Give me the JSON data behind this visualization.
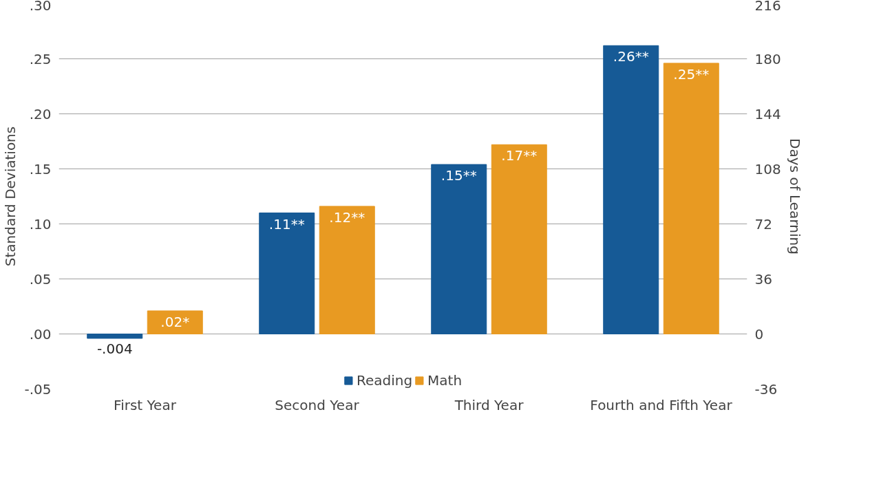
{
  "chart_data": {
    "type": "bar",
    "ylabel": "Standard Deviations",
    "y2label": "Days of Learning",
    "categories": [
      "First Year",
      "Second Year",
      "Third Year",
      "Fourth and Fifth Year"
    ],
    "series": [
      {
        "name": "Reading",
        "color": "#165a96",
        "values": [
          -0.004,
          0.11,
          0.154,
          0.262
        ],
        "value_labels": [
          "-.004",
          ".11**",
          ".15**",
          ".26**"
        ]
      },
      {
        "name": "Math",
        "color": "#e89a22",
        "values": [
          0.021,
          0.116,
          0.172,
          0.246
        ],
        "value_labels": [
          ".02*",
          ".12**",
          ".17**",
          ".25**"
        ]
      }
    ],
    "ylim": [
      -0.05,
      0.3
    ],
    "yticks": [
      {
        "value": -0.05,
        "label": "-.05"
      },
      {
        "value": 0.0,
        "label": ".00"
      },
      {
        "value": 0.05,
        "label": ".05"
      },
      {
        "value": 0.1,
        "label": ".10"
      },
      {
        "value": 0.15,
        "label": ".15"
      },
      {
        "value": 0.2,
        "label": ".20"
      },
      {
        "value": 0.25,
        "label": ".25"
      },
      {
        "value": 0.3,
        "label": ".30"
      }
    ],
    "y2lim": [
      -36,
      216
    ],
    "y2ticks": [
      -36,
      0,
      36,
      72,
      108,
      144,
      180,
      216
    ],
    "grid": "y",
    "legend": "bottom"
  }
}
